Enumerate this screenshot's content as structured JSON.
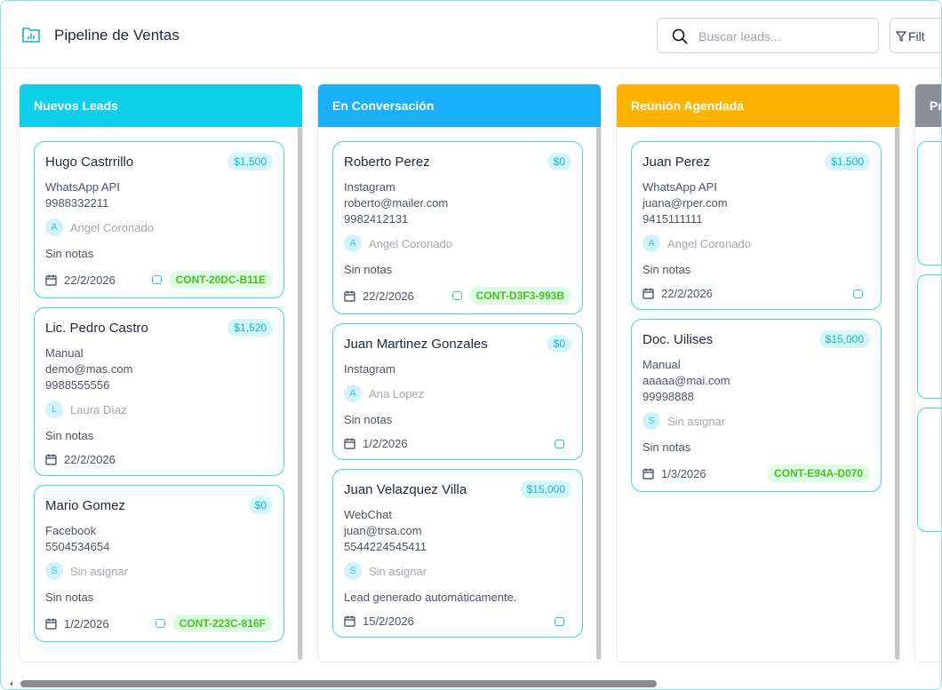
{
  "header": {
    "title": "Pipeline de Ventas",
    "search_placeholder": "Buscar leads...",
    "filter_label": "Filt"
  },
  "columns": [
    {
      "title": "Nuevos Leads",
      "color": "#0fd0ea",
      "cards": [
        {
          "name": "Hugo Castrrillo",
          "amount": "$1,500",
          "lines": [
            "WhatsApp API",
            "9988332211"
          ],
          "avatar": "A",
          "assignee": "Angel Coronado",
          "notes": "Sin notas",
          "date": "22/2/2026",
          "chat": true,
          "contact": "CONT-20DC-B11E"
        },
        {
          "name": "Lic. Pedro Castro",
          "amount": "$1,520",
          "lines": [
            "Manual",
            "demo@mas.com",
            "9988555556"
          ],
          "avatar": "L",
          "assignee": "Laura Díaz",
          "notes": "Sin notas",
          "date": "22/2/2026",
          "chat": false
        },
        {
          "name": "Mario Gomez",
          "amount": "$0",
          "lines": [
            "Facebook",
            "5504534654"
          ],
          "avatar": "S",
          "assignee": "Sin asignar",
          "notes": "Sin notas",
          "date": "1/2/2026",
          "chat": true,
          "contact": "CONT-223C-816F"
        }
      ]
    },
    {
      "title": "En Conversación",
      "color": "#1ab0f7",
      "cards": [
        {
          "name": "Roberto Perez",
          "amount": "$0",
          "lines": [
            "Instagram",
            "roberto@mailer.com",
            "9982412131"
          ],
          "avatar": "A",
          "assignee": "Angel Coronado",
          "notes": "Sin notas",
          "date": "22/2/2026",
          "chat": true,
          "contact": "CONT-D3F3-993B"
        },
        {
          "name": "Juan Martinez Gonzales",
          "amount": "$0",
          "lines": [
            "Instagram"
          ],
          "avatar": "A",
          "assignee": "Ana Lopez",
          "notes": "Sin notas",
          "date": "1/2/2026",
          "chat": true
        },
        {
          "name": "Juan Velazquez Villa",
          "amount": "$15,000",
          "lines": [
            "WebChat",
            "juan@trsa.com",
            "5544224545411"
          ],
          "avatar": "S",
          "assignee": "Sin asignar",
          "notes": "Lead generado automáticamente.",
          "date": "15/2/2026",
          "chat": true
        }
      ]
    },
    {
      "title": "Reunión Agendada",
      "color": "#ffb300",
      "cards": [
        {
          "name": "Juan Perez",
          "amount": "$1,500",
          "lines": [
            "WhatsApp API",
            "juana@rper.com",
            "9415111111"
          ],
          "avatar": "A",
          "assignee": "Angel Coronado",
          "notes": "Sin notas",
          "date": "22/2/2026",
          "chat": true
        },
        {
          "name": "Doc. Uilises",
          "amount": "$15,000",
          "lines": [
            "Manual",
            "aaaaa@mai.com",
            "99998888"
          ],
          "avatar": "S",
          "assignee": "Sin asignar",
          "notes": "Sin notas",
          "date": "1/3/2026",
          "chat": false,
          "contact": "CONT-E94A-D070"
        }
      ]
    },
    {
      "title": "Pr",
      "color": "#8c9096",
      "cards": []
    }
  ]
}
